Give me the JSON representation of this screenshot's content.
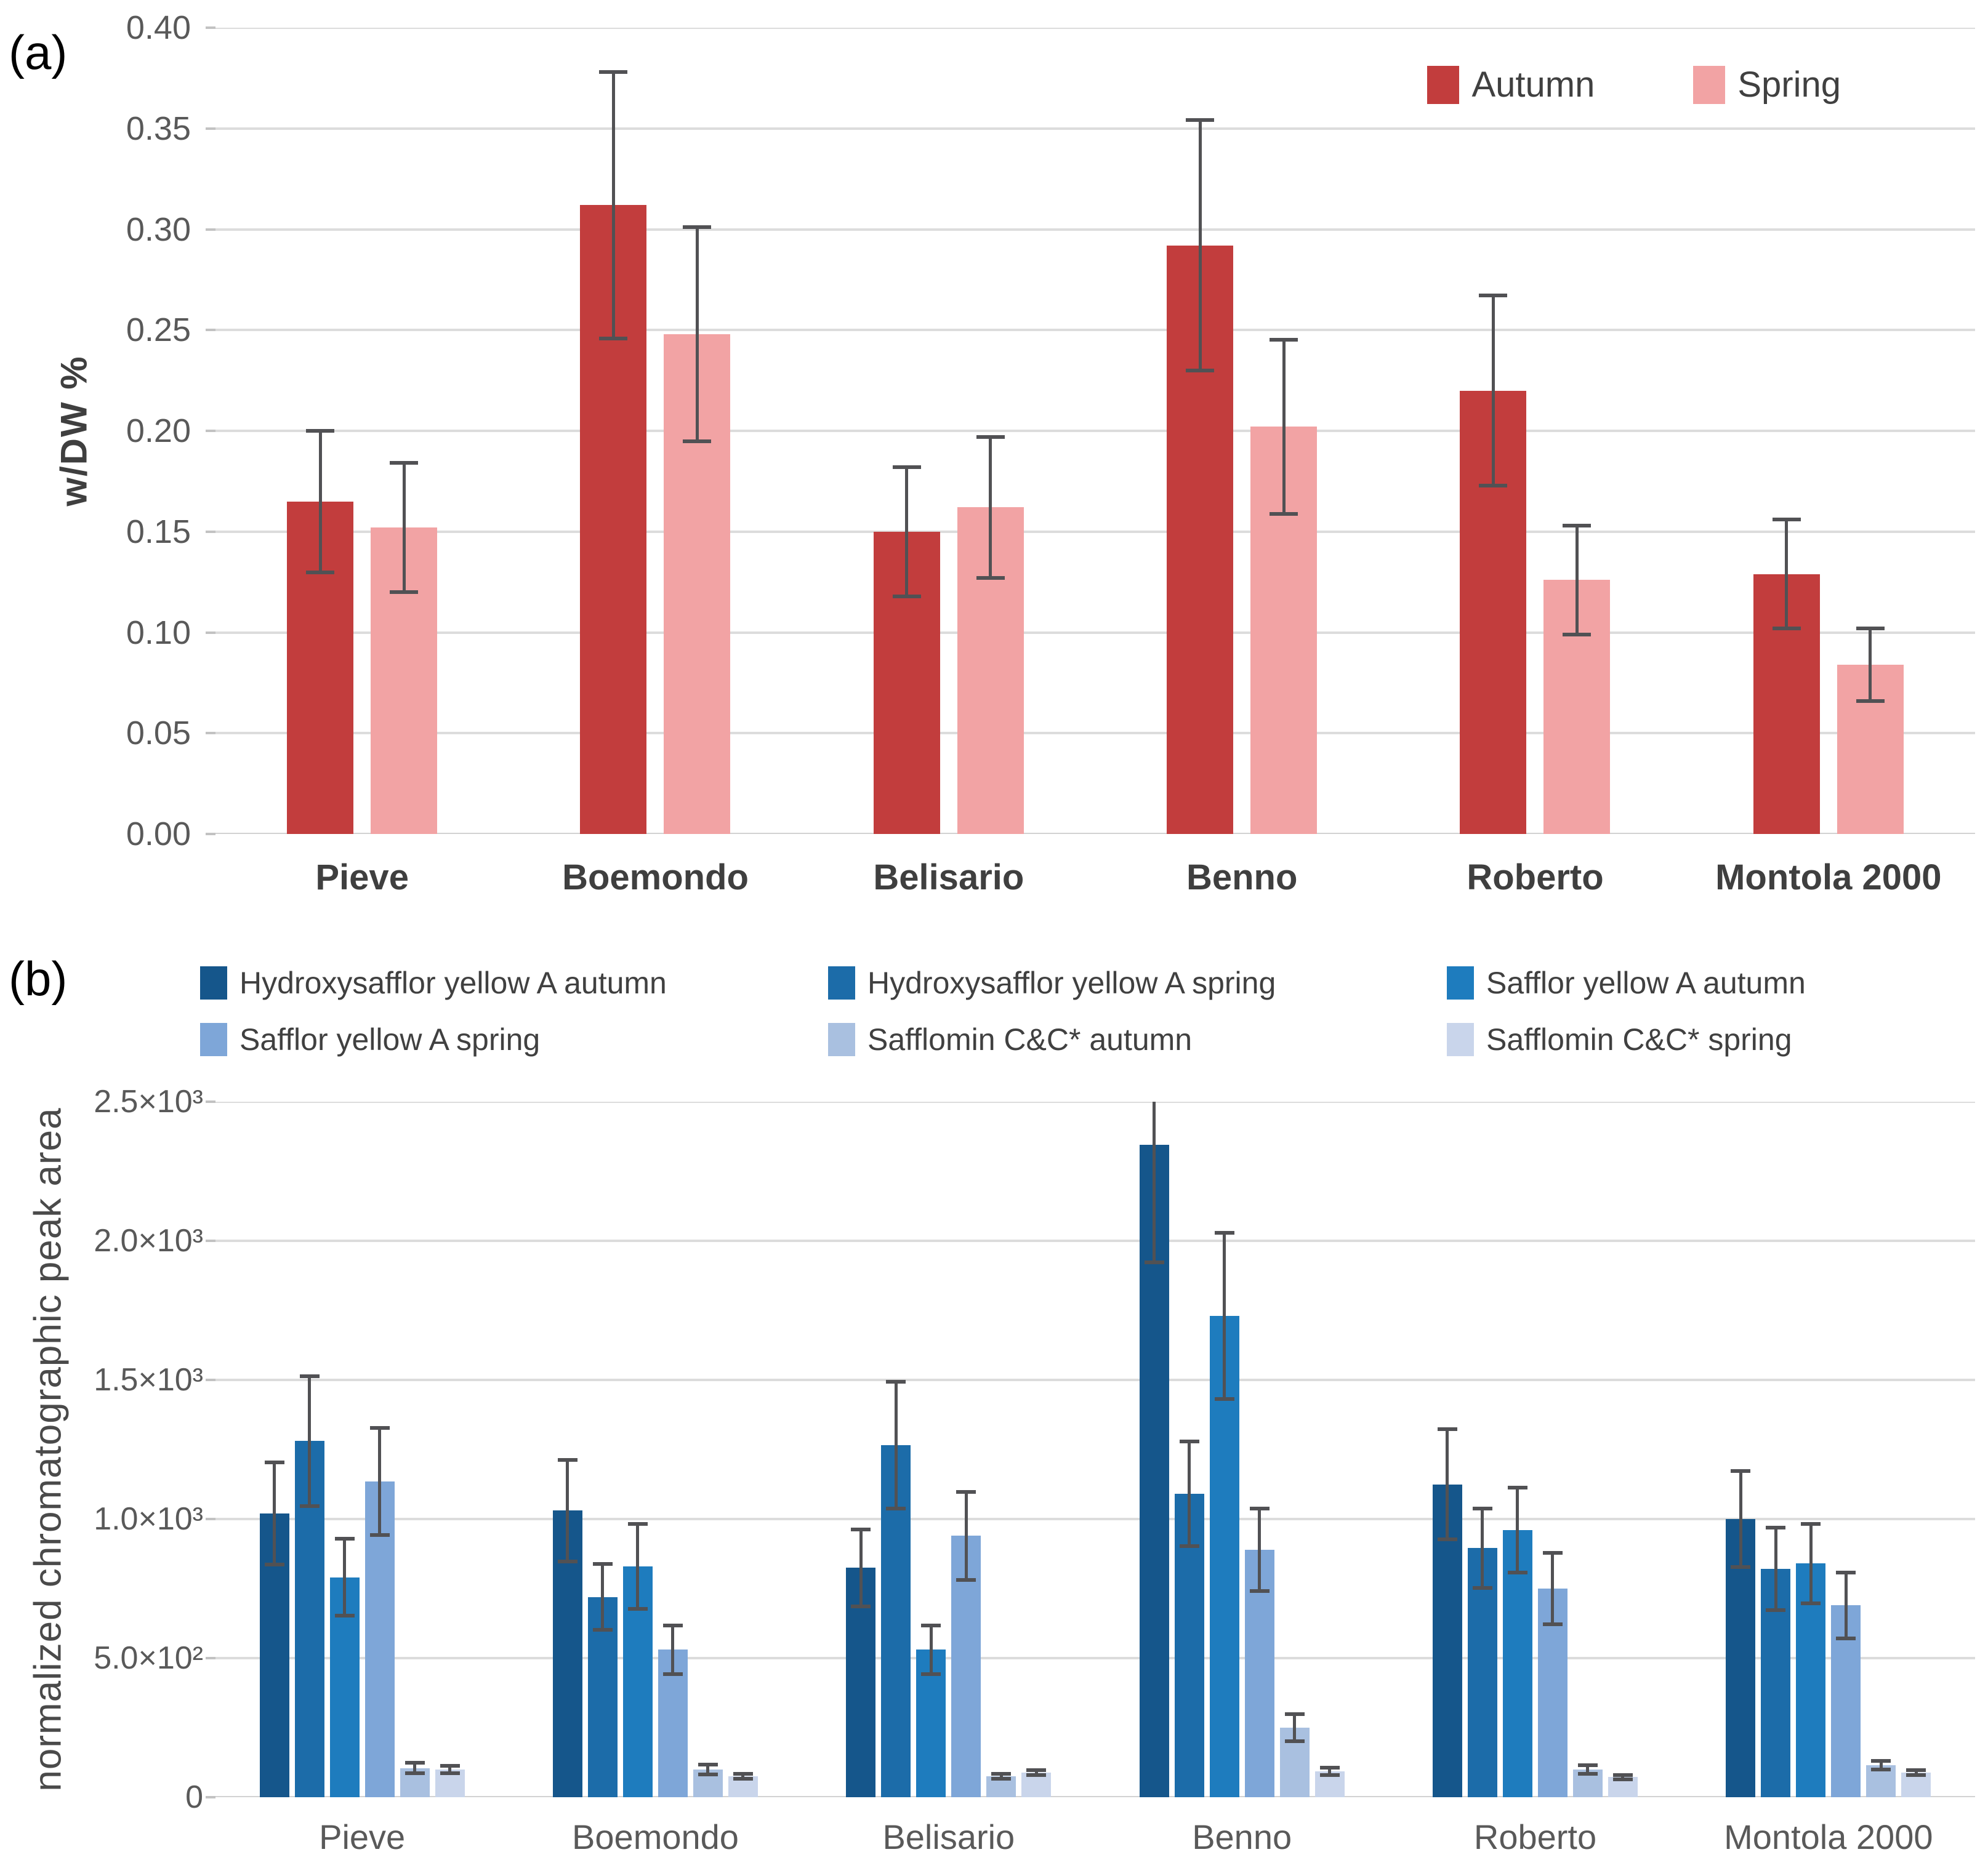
{
  "figure": {
    "panel_a": {
      "label": "(a)",
      "y_title": "w/DW %"
    },
    "panel_b": {
      "label": "(b)",
      "y_title": "normalized chromatographic peak area"
    }
  },
  "colors": {
    "gridline": "#dcdcdc",
    "error_bar": "#515154",
    "tick_text": "#595959",
    "label_text": "#404040"
  },
  "chart_data": [
    {
      "type": "bar",
      "title": "(a)",
      "xlabel": "",
      "ylabel": "w/DW %",
      "ylim": [
        0,
        0.4
      ],
      "grid": true,
      "legend_position": "top-right-inside",
      "ytick_values": [
        0.4,
        0.35,
        0.3,
        0.25,
        0.2,
        0.15,
        0.1,
        0.05,
        0.0
      ],
      "ytick_labels": [
        "0.40",
        "0.35",
        "0.30",
        "0.25",
        "0.20",
        "0.15",
        "0.10",
        "0.05",
        "0.00"
      ],
      "categories": [
        "Pieve",
        "Boemondo",
        "Belisario",
        "Benno",
        "Roberto",
        "Montola 2000"
      ],
      "series": [
        {
          "name": "Autumn",
          "color": "#c23d3d",
          "values": [
            0.165,
            0.312,
            0.15,
            0.292,
            0.22,
            0.129
          ],
          "errors": [
            0.036,
            0.067,
            0.033,
            0.063,
            0.048,
            0.028
          ]
        },
        {
          "name": "Spring",
          "color": "#f2a3a4",
          "values": [
            0.152,
            0.248,
            0.162,
            0.202,
            0.126,
            0.084
          ],
          "errors": [
            0.033,
            0.054,
            0.036,
            0.044,
            0.028,
            0.019
          ]
        }
      ]
    },
    {
      "type": "bar",
      "title": "(b)",
      "xlabel": "",
      "ylabel": "normalized chromatographic peak area",
      "ylim": [
        0,
        2500
      ],
      "grid": true,
      "legend_position": "top",
      "ytick_values": [
        2500,
        2000,
        1500,
        1000,
        500,
        0
      ],
      "ytick_labels": [
        "2.5×10³",
        "2.0×10³",
        "1.5×10³",
        "1.0×10³",
        "5.0×10²",
        "0"
      ],
      "categories": [
        "Pieve",
        "Boemondo",
        "Belisario",
        "Benno",
        "Roberto",
        "Montola 2000"
      ],
      "series": [
        {
          "name": "Hydroxysafflor yellow A autumn",
          "color": "#15568b",
          "values": [
            1020,
            1030,
            825,
            2345,
            1125,
            1000
          ],
          "errors": [
            190,
            190,
            145,
            430,
            205,
            180
          ]
        },
        {
          "name": "Hydroxysafflor yellow A spring",
          "color": "#1c6ca9",
          "values": [
            1280,
            720,
            1265,
            1090,
            895,
            820
          ],
          "errors": [
            240,
            125,
            235,
            195,
            150,
            155
          ]
        },
        {
          "name": "Safflor yellow A autumn",
          "color": "#1e7cbe",
          "values": [
            790,
            830,
            530,
            1730,
            960,
            840
          ],
          "errors": [
            145,
            160,
            95,
            305,
            160,
            150
          ]
        },
        {
          "name": "Safflor yellow A spring",
          "color": "#7ea6d8",
          "values": [
            1135,
            530,
            940,
            890,
            750,
            690
          ],
          "errors": [
            200,
            95,
            165,
            155,
            135,
            125
          ]
        },
        {
          "name": "Safflomin C&C* autumn",
          "color": "#a9c0e0",
          "values": [
            105,
            100,
            75,
            250,
            100,
            115
          ],
          "errors": [
            25,
            25,
            15,
            55,
            22,
            22
          ]
        },
        {
          "name": "Safflomin C&C* spring",
          "color": "#c9d5eb",
          "values": [
            100,
            75,
            88,
            93,
            72,
            88
          ],
          "errors": [
            20,
            15,
            16,
            20,
            15,
            16
          ]
        }
      ]
    }
  ]
}
